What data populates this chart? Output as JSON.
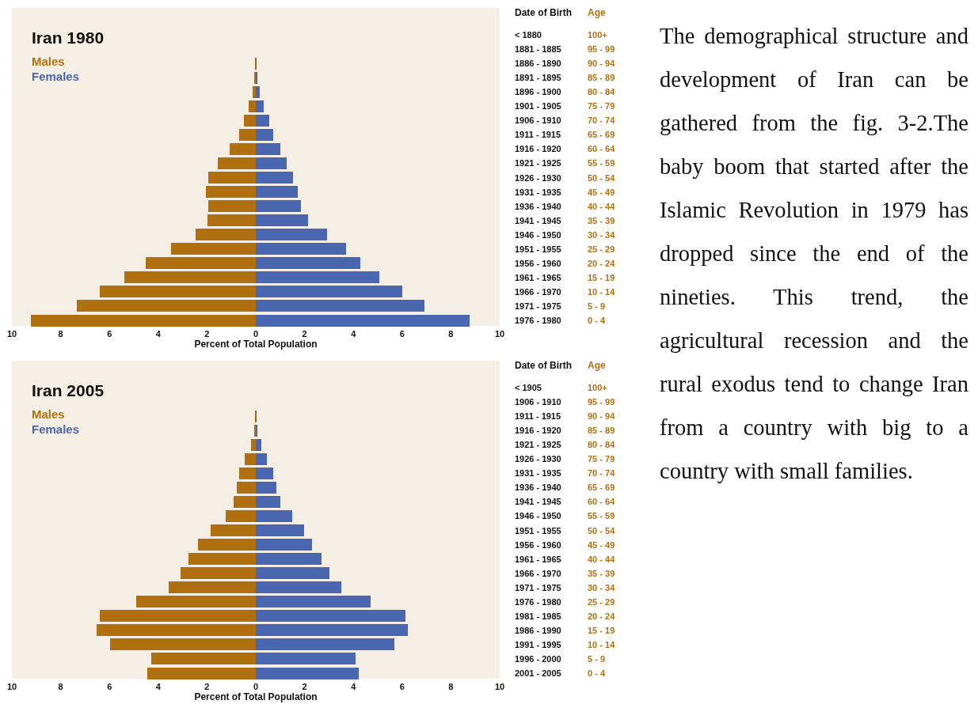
{
  "chart_data": [
    {
      "type": "bar",
      "orientation": "horizontal",
      "stacked": true,
      "title": "Iran 1980",
      "xlabel": "Percent of Total Population",
      "ylabel": "Age",
      "y2label": "Date of Birth",
      "legend": "top left",
      "categories": [
        "100+",
        "95 - 99",
        "90 - 94",
        "85 - 89",
        "80 - 84",
        "75 - 79",
        "70 - 74",
        "65 - 69",
        "60 - 64",
        "55 - 59",
        "50 - 54",
        "45 - 49",
        "40 - 44",
        "35 - 39",
        "30 - 34",
        "25 - 29",
        "20 - 24",
        "15 - 19",
        "10 - 14",
        "5 - 9",
        "0 - 4"
      ],
      "y2_categories": [
        "< 1880",
        "1881 - 1885",
        "1886 - 1890",
        "1891 - 1895",
        "1896 - 1900",
        "1901 - 1905",
        "1906 - 1910",
        "1911 - 1915",
        "1916 - 1920",
        "1921 - 1925",
        "1926 - 1930",
        "1931 - 1935",
        "1936 - 1940",
        "1941 - 1945",
        "1946 - 1950",
        "1951 - 1955",
        "1956 - 1960",
        "1961 - 1965",
        "1966 - 1970",
        "1971 - 1975",
        "1976 - 1980"
      ],
      "series": [
        {
          "name": "Males",
          "color": "#b07010",
          "values": [
            0,
            0,
            -0.03,
            -0.07,
            -0.13,
            -0.28,
            -0.49,
            -0.69,
            -1.08,
            -1.57,
            -1.94,
            -2.06,
            -1.96,
            -1.97,
            -2.46,
            -3.49,
            -4.5,
            -5.38,
            -6.41,
            -7.34,
            -9.22
          ]
        },
        {
          "name": "Females",
          "color": "#4a66b0",
          "values": [
            0,
            0,
            0.03,
            0.05,
            0.15,
            0.31,
            0.54,
            0.73,
            1.0,
            1.26,
            1.52,
            1.71,
            1.84,
            2.14,
            2.92,
            3.7,
            4.29,
            5.07,
            6.02,
            6.9,
            8.76
          ]
        }
      ],
      "xlim": [
        -10,
        10
      ],
      "xticks": [
        {
          "value": -10,
          "label": "10"
        },
        {
          "value": -8,
          "label": "8"
        },
        {
          "value": -6,
          "label": "6"
        },
        {
          "value": -4,
          "label": "4"
        },
        {
          "value": -2,
          "label": "2"
        },
        0,
        2,
        4,
        6,
        8,
        10
      ],
      "annotations": [
        "The demographical structure and development of Iran can be gathered from the fig. 3-2.The baby boom that started after the Islamic Revolution in 1979 has dropped since the end of the nineties. This trend, the agricultural recession and the rural exodus tend to change Iran from a country with big to a country with small families."
      ]
    },
    {
      "type": "bar",
      "orientation": "horizontal",
      "stacked": true,
      "title": "Iran 2005",
      "xlabel": "Percent of Total Population",
      "ylabel": "Age",
      "y2label": "Date of Birth",
      "legend": "top left",
      "categories": [
        "100+",
        "95 - 99",
        "90 - 94",
        "85 - 89",
        "80 - 84",
        "75 - 79",
        "70 - 74",
        "65 - 69",
        "60 - 64",
        "55 - 59",
        "50 - 54",
        "45 - 49",
        "40 - 44",
        "35 - 39",
        "30 - 34",
        "25 - 29",
        "20 - 24",
        "15 - 19",
        "10 - 14",
        "5 - 9",
        "0 - 4"
      ],
      "y2_categories": [
        "< 1905",
        "1906 - 1910",
        "1911 - 1915",
        "1916 - 1920",
        "1921 - 1925",
        "1926 - 1930",
        "1931 - 1935",
        "1936 - 1940",
        "1941 - 1945",
        "1946 - 1950",
        "1951 - 1955",
        "1956 - 1960",
        "1961 - 1965",
        "1966 - 1970",
        "1971 - 1975",
        "1976 - 1980",
        "1981 - 1985",
        "1986 - 1990",
        "1991 - 1995",
        "1996 - 2000",
        "2001 - 2005"
      ],
      "series": [
        {
          "name": "Males",
          "color": "#b07010",
          "values": [
            0,
            0,
            -0.03,
            -0.08,
            -0.21,
            -0.47,
            -0.69,
            -0.77,
            -0.9,
            -1.22,
            -1.84,
            -2.38,
            -2.77,
            -3.07,
            -3.57,
            -4.89,
            -6.39,
            -6.54,
            -5.97,
            -4.27,
            -4.44
          ]
        },
        {
          "name": "Females",
          "color": "#4a66b0",
          "values": [
            0,
            0,
            0.03,
            0.08,
            0.23,
            0.47,
            0.7,
            0.83,
            1.01,
            1.5,
            1.97,
            2.3,
            2.68,
            3.03,
            3.52,
            4.7,
            6.15,
            6.23,
            5.68,
            4.08,
            4.23
          ]
        }
      ],
      "xlim": [
        -10,
        10
      ],
      "xticks": [
        {
          "value": -10,
          "label": "10"
        },
        {
          "value": -8,
          "label": "8"
        },
        {
          "value": -6,
          "label": "6"
        },
        {
          "value": -4,
          "label": "4"
        },
        {
          "value": -2,
          "label": "2"
        },
        0,
        2,
        4,
        6,
        8,
        10
      ]
    }
  ]
}
